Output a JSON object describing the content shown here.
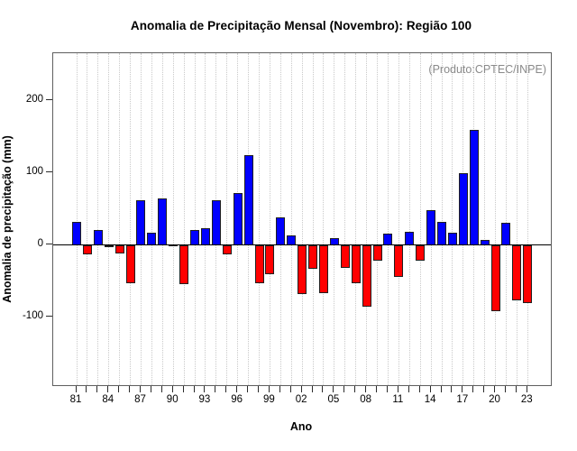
{
  "chart_data": {
    "type": "bar",
    "title": "Anomalia de Precipitação Mensal (Novembro): Região 100",
    "annotation": "(Produto:CPTEC/INPE)",
    "xlabel": "Ano",
    "ylabel": "Anomalia de precipitação (mm)",
    "categories": [
      1981,
      1982,
      1983,
      1984,
      1985,
      1986,
      1987,
      1988,
      1989,
      1990,
      1991,
      1992,
      1993,
      1994,
      1995,
      1996,
      1997,
      1998,
      1999,
      2000,
      2001,
      2002,
      2003,
      2004,
      2005,
      2006,
      2007,
      2008,
      2009,
      2010,
      2011,
      2012,
      2013,
      2014,
      2015,
      2016,
      2017,
      2018,
      2019,
      2020,
      2021,
      2022,
      2023
    ],
    "values": [
      32,
      -13,
      21,
      -3,
      -12,
      -53,
      62,
      17,
      65,
      1,
      -54,
      21,
      23,
      62,
      -13,
      72,
      125,
      -53,
      -40,
      38,
      14,
      -68,
      -33,
      -67,
      10,
      -32,
      -53,
      -85,
      -22,
      16,
      -44,
      19,
      -22,
      48,
      32,
      17,
      100,
      160,
      7,
      -91,
      31,
      -76,
      -80
    ],
    "yticks": [
      -100,
      0,
      100,
      200
    ],
    "xtick_labels": [
      "81",
      "84",
      "87",
      "90",
      "93",
      "96",
      "99",
      "02",
      "05",
      "08",
      "11",
      "14",
      "17",
      "20",
      "23"
    ],
    "xtick_every": 3,
    "ylim": [
      -194,
      266
    ],
    "grid": "vertical-dotted",
    "legend": "none",
    "colors": {
      "positive": "#0000ff",
      "negative": "#ff0000",
      "bar_border": "#1f1f1f",
      "annotation_gray": "#8a8a8a"
    }
  }
}
